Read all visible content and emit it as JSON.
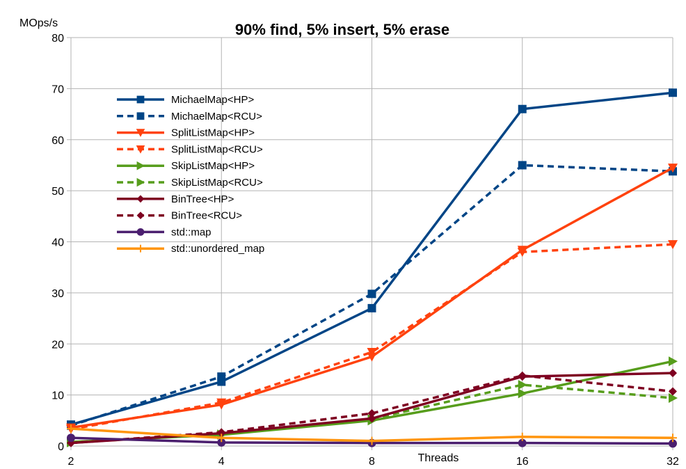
{
  "chart_data": {
    "type": "line",
    "title": "90% find, 5% insert, 5% erase",
    "ylabel": "MOps/s",
    "xlabel": "Threads",
    "x": [
      2,
      4,
      8,
      16,
      32
    ],
    "xscale": "log2",
    "ylim": [
      0,
      80
    ],
    "yticks": [
      0,
      10,
      20,
      30,
      40,
      50,
      60,
      70,
      80
    ],
    "grid": true,
    "legend_position": "top-left",
    "series": [
      {
        "name": "MichaelMap<HP>",
        "color": "#004586",
        "dash": "solid",
        "marker": "square",
        "values": [
          4.2,
          12.6,
          27.0,
          66.0,
          69.2
        ]
      },
      {
        "name": "MichaelMap<RCU>",
        "color": "#004586",
        "dash": "dashed",
        "marker": "square",
        "values": [
          4.0,
          13.6,
          29.8,
          55.0,
          53.8
        ]
      },
      {
        "name": "SplitListMap<HP>",
        "color": "#ff420e",
        "dash": "solid",
        "marker": "triangle-down",
        "values": [
          3.6,
          8.1,
          17.5,
          38.4,
          54.5
        ]
      },
      {
        "name": "SplitListMap<RCU>",
        "color": "#ff420e",
        "dash": "dashed",
        "marker": "triangle-down",
        "values": [
          3.3,
          8.5,
          18.4,
          38.0,
          39.5
        ]
      },
      {
        "name": "SkipListMap<HP>",
        "color": "#579d1c",
        "dash": "solid",
        "marker": "triangle-right",
        "values": [
          0.8,
          2.2,
          5.0,
          10.3,
          16.6
        ]
      },
      {
        "name": "SkipListMap<RCU>",
        "color": "#579d1c",
        "dash": "dashed",
        "marker": "triangle-right",
        "values": [
          0.7,
          2.3,
          5.3,
          12.0,
          9.4
        ]
      },
      {
        "name": "BinTree<HP>",
        "color": "#7e0021",
        "dash": "solid",
        "marker": "diamond",
        "values": [
          0.6,
          2.5,
          5.4,
          13.6,
          14.3
        ]
      },
      {
        "name": "BinTree<RCU>",
        "color": "#7e0021",
        "dash": "dashed",
        "marker": "diamond",
        "values": [
          0.6,
          2.7,
          6.4,
          13.8,
          10.7
        ]
      },
      {
        "name": "std::map",
        "color": "#4b1f6f",
        "dash": "solid",
        "marker": "circle",
        "values": [
          1.6,
          0.7,
          0.6,
          0.6,
          0.5
        ]
      },
      {
        "name": "std::unordered_map",
        "color": "#ff950e",
        "dash": "solid",
        "marker": "plus",
        "values": [
          3.4,
          1.6,
          1.0,
          1.8,
          1.6
        ]
      }
    ]
  }
}
